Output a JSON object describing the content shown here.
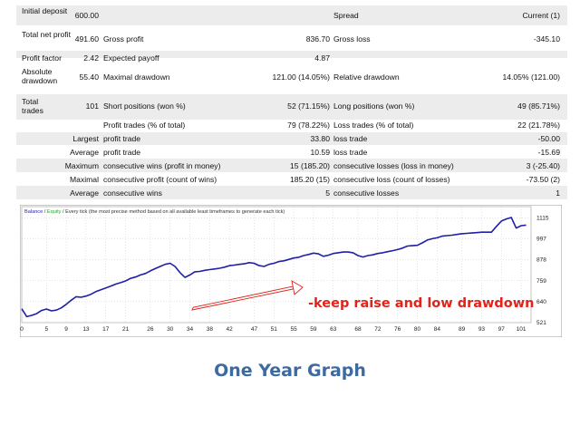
{
  "report": {
    "initial_deposit_label": "Initial deposit",
    "initial_deposit": "600.00",
    "spread_label": "Spread",
    "spread": "Current (1)",
    "total_net_profit_label": "Total net profit",
    "total_net_profit": "491.60",
    "gross_profit_label": "Gross profit",
    "gross_profit": "836.70",
    "gross_loss_label": "Gross loss",
    "gross_loss": "-345.10",
    "profit_factor_label": "Profit factor",
    "profit_factor": "2.42",
    "expected_payoff_label": "Expected payoff",
    "expected_payoff": "4.87",
    "absolute_drawdown_label": "Absolute drawdown",
    "absolute_drawdown": "55.40",
    "maximal_drawdown_label": "Maximal drawdown",
    "maximal_drawdown": "121.00 (14.05%)",
    "relative_drawdown_label": "Relative drawdown",
    "relative_drawdown": "14.05% (121.00)",
    "total_trades_label": "Total trades",
    "total_trades": "101",
    "short_positions_label": "Short positions (won %)",
    "short_positions": "52 (71.15%)",
    "long_positions_label": "Long positions (won %)",
    "long_positions": "49 (85.71%)",
    "profit_trades_label": "Profit trades (% of total)",
    "profit_trades": "79 (78.22%)",
    "loss_trades_label": "Loss trades (% of total)",
    "loss_trades": "22 (21.78%)",
    "largest_label": "Largest",
    "largest_profit_label": "profit trade",
    "largest_profit": "33.80",
    "largest_loss_label": "loss trade",
    "largest_loss": "-50.00",
    "average_label": "Average",
    "average_profit_label": "profit trade",
    "average_profit": "10.59",
    "average_loss_label": "loss trade",
    "average_loss": "-15.69",
    "maximum_label": "Maximum",
    "max_cons_wins_label": "consecutive wins (profit in money)",
    "max_cons_wins": "15 (185.20)",
    "max_cons_losses_label": "consecutive losses (loss in money)",
    "max_cons_losses": "3 (-25.40)",
    "maximal_label": "Maximal",
    "maximal_cons_profit_label": "consecutive profit (count of wins)",
    "maximal_cons_profit": "185.20 (15)",
    "maximal_cons_loss_label": "consecutive loss (count of losses)",
    "maximal_cons_loss": "-73.50 (2)",
    "average2_label": "Average",
    "avg_cons_wins_label": "consecutive wins",
    "avg_cons_wins": "5",
    "avg_cons_losses_label": "consecutive losses",
    "avg_cons_losses": "1"
  },
  "chart": {
    "legend_balance": "Balance",
    "legend_sep1": " / ",
    "legend_equity": "Equity",
    "legend_rest": " / Every tick (the most precise method based on all available least timeframes to generate each tick)",
    "annotation": "-keep raise and low drawdown",
    "colors": {
      "balance": "#1f1fa8",
      "equity": "#22aa22",
      "annotation": "#e0241b",
      "grid": "#c8c8c8"
    }
  },
  "chart_data": {
    "type": "line",
    "ylim": [
      521,
      1180
    ],
    "xlim": [
      0,
      103
    ],
    "yticks": [
      1115,
      997,
      878,
      759,
      640,
      521
    ],
    "xticks": [
      0,
      5,
      9,
      13,
      17,
      21,
      26,
      30,
      34,
      38,
      42,
      47,
      51,
      55,
      59,
      63,
      68,
      72,
      76,
      80,
      84,
      89,
      93,
      97,
      101
    ],
    "series": [
      {
        "name": "Balance",
        "x": [
          0,
          1,
          2,
          3,
          4,
          5,
          6,
          7,
          8,
          9,
          10,
          11,
          12,
          13,
          14,
          15,
          16,
          17,
          18,
          19,
          20,
          21,
          22,
          23,
          24,
          25,
          26,
          27,
          28,
          29,
          30,
          31,
          32,
          33,
          34,
          35,
          36,
          37,
          38,
          39,
          40,
          41,
          42,
          43,
          44,
          45,
          46,
          47,
          48,
          49,
          50,
          51,
          52,
          53,
          54,
          55,
          56,
          57,
          58,
          59,
          60,
          61,
          62,
          63,
          64,
          65,
          66,
          67,
          68,
          69,
          70,
          71,
          72,
          73,
          74,
          75,
          76,
          77,
          78,
          79,
          80,
          81,
          82,
          83,
          84,
          85,
          86,
          87,
          88,
          89,
          90,
          91,
          92,
          93,
          94,
          95,
          96,
          97,
          98,
          99,
          100,
          101,
          102
        ],
        "values": [
          600,
          555,
          562,
          572,
          590,
          598,
          588,
          592,
          605,
          625,
          648,
          668,
          665,
          672,
          682,
          697,
          708,
          718,
          728,
          740,
          748,
          758,
          772,
          780,
          792,
          800,
          815,
          828,
          840,
          852,
          858,
          840,
          805,
          778,
          792,
          810,
          812,
          818,
          822,
          826,
          830,
          836,
          845,
          848,
          852,
          855,
          862,
          858,
          845,
          840,
          852,
          858,
          868,
          872,
          880,
          888,
          892,
          902,
          908,
          916,
          912,
          898,
          904,
          914,
          918,
          922,
          922,
          918,
          902,
          894,
          902,
          906,
          914,
          918,
          924,
          930,
          936,
          944,
          956,
          958,
          960,
          974,
          990,
          998,
          1003,
          1012,
          1015,
          1018,
          1022,
          1026,
          1028,
          1030,
          1032,
          1035,
          1035,
          1035,
          1068,
          1098,
          1110,
          1118,
          1058,
          1072,
          1075
        ]
      }
    ]
  },
  "caption": "One Year Graph"
}
